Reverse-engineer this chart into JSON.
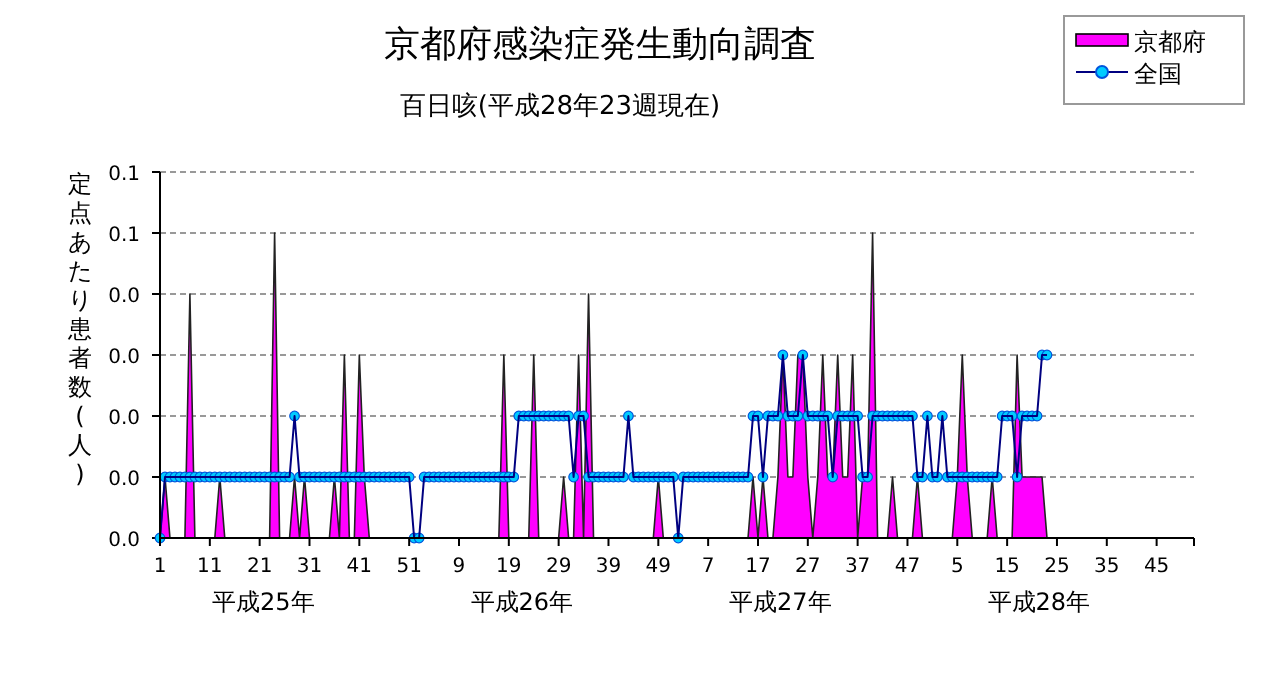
{
  "chart_data": {
    "type": "area",
    "title": "京都府感染症発生動向調査",
    "subtitle": "百日咳(平成28年23週現在)",
    "ylabel": "定点あたり患者数(人)",
    "categories": [
      "1",
      null,
      null,
      null,
      null,
      null,
      null,
      null,
      null,
      null,
      "11",
      null,
      null,
      null,
      null,
      null,
      null,
      null,
      null,
      null,
      "21",
      null,
      null,
      null,
      null,
      null,
      null,
      null,
      null,
      null,
      "31",
      null,
      null,
      null,
      null,
      null,
      null,
      null,
      null,
      null,
      "41",
      null,
      null,
      null,
      null,
      null,
      null,
      null,
      null,
      null,
      "51",
      null,
      null,
      null,
      null,
      null,
      null,
      null,
      null,
      null,
      "9",
      null,
      null,
      null,
      null,
      null,
      null,
      null,
      null,
      null,
      "19",
      null,
      null,
      null,
      null,
      null,
      null,
      null,
      null,
      null,
      "29",
      null,
      null,
      null,
      null,
      null,
      null,
      null,
      null,
      null,
      "39",
      null,
      null,
      null,
      null,
      null,
      null,
      null,
      null,
      null,
      "49",
      null,
      null,
      null,
      null,
      null,
      null,
      null,
      null,
      null,
      "7",
      null,
      null,
      null,
      null,
      null,
      null,
      null,
      null,
      null,
      "17",
      null,
      null,
      null,
      null,
      null,
      null,
      null,
      null,
      null,
      "27",
      null,
      null,
      null,
      null,
      null,
      null,
      null,
      null,
      null,
      "37",
      null,
      null,
      null,
      null,
      null,
      null,
      null,
      null,
      null,
      "47",
      null,
      null,
      null,
      null,
      null,
      null,
      null,
      null,
      null,
      "5",
      null,
      null,
      null,
      null,
      null,
      null,
      null,
      null,
      null,
      "15",
      null,
      null,
      null,
      null,
      null,
      null,
      null,
      null,
      null,
      "25",
      null,
      null,
      null,
      null,
      null,
      null,
      null,
      null,
      null,
      "35",
      null,
      null,
      null,
      null,
      null,
      null,
      null,
      null,
      null,
      "45",
      null,
      null,
      null,
      null,
      null,
      null,
      null
    ],
    "series": [
      {
        "name": "京都府",
        "color": "#ff00ff",
        "values": [
          0,
          0.01,
          0,
          0,
          0,
          0,
          0.04,
          0,
          0,
          0,
          0,
          0,
          0.01,
          0,
          0,
          0,
          0,
          0,
          0,
          0,
          0,
          0,
          0,
          0.05,
          0,
          0,
          0,
          0.01,
          0,
          0.01,
          0,
          0,
          0,
          0,
          0,
          0.01,
          0,
          0.03,
          0,
          0,
          0.03,
          0.01,
          0,
          0,
          0,
          0,
          0,
          0,
          0,
          0,
          0,
          0,
          0,
          0,
          0,
          0,
          0,
          0,
          0,
          0,
          0,
          0,
          0,
          0,
          0,
          0,
          0,
          0,
          0,
          0.03,
          0,
          0,
          0,
          0,
          0,
          0.03,
          0,
          0,
          0,
          0,
          0,
          0.01,
          0,
          0,
          0.03,
          0,
          0.04,
          0,
          0,
          0,
          0,
          0,
          0,
          0,
          0,
          0,
          0,
          0,
          0,
          0,
          0.01,
          0,
          0,
          0,
          0,
          0,
          0,
          0,
          0,
          0,
          0,
          0,
          0,
          0,
          0,
          0,
          0,
          0,
          0,
          0.01,
          0,
          0.01,
          0,
          0,
          0.01,
          0.03,
          0.01,
          0.01,
          0.03,
          0.03,
          0.01,
          0,
          0.01,
          0.03,
          0.01,
          0.01,
          0.03,
          0.01,
          0.01,
          0.03,
          0,
          0.01,
          0.01,
          0.05,
          0,
          0,
          0,
          0.01,
          0,
          0,
          0,
          0,
          0.01,
          0,
          0,
          0,
          0,
          0,
          0,
          0,
          0.01,
          0.03,
          0.01,
          0,
          0,
          0,
          0,
          0.01,
          0,
          0,
          0,
          0,
          0.03,
          0.01,
          0.01,
          0.01,
          0.01,
          0.01,
          0,
          null,
          null,
          null,
          null,
          null,
          null,
          null,
          null,
          null,
          null,
          null,
          null,
          null,
          null,
          null,
          null,
          null,
          null,
          null,
          null,
          null,
          null,
          null,
          null,
          null,
          null,
          null,
          null,
          null
        ]
      },
      {
        "name": "全国",
        "type": "line",
        "marker": "circle",
        "color": "#0055dd",
        "values": [
          0,
          0.01,
          0.01,
          0.01,
          0.01,
          0.01,
          0.01,
          0.01,
          0.01,
          0.01,
          0.01,
          0.01,
          0.01,
          0.01,
          0.01,
          0.01,
          0.01,
          0.01,
          0.01,
          0.01,
          0.01,
          0.01,
          0.01,
          0.01,
          0.01,
          0.01,
          0.01,
          0.02,
          0.01,
          0.01,
          0.01,
          0.01,
          0.01,
          0.01,
          0.01,
          0.01,
          0.01,
          0.01,
          0.01,
          0.01,
          0.01,
          0.01,
          0.01,
          0.01,
          0.01,
          0.01,
          0.01,
          0.01,
          0.01,
          0.01,
          0.01,
          0,
          0,
          0.01,
          0.01,
          0.01,
          0.01,
          0.01,
          0.01,
          0.01,
          0.01,
          0.01,
          0.01,
          0.01,
          0.01,
          0.01,
          0.01,
          0.01,
          0.01,
          0.01,
          0.01,
          0.01,
          0.02,
          0.02,
          0.02,
          0.02,
          0.02,
          0.02,
          0.02,
          0.02,
          0.02,
          0.02,
          0.02,
          0.01,
          0.02,
          0.02,
          0.01,
          0.01,
          0.01,
          0.01,
          0.01,
          0.01,
          0.01,
          0.01,
          0.02,
          0.01,
          0.01,
          0.01,
          0.01,
          0.01,
          0.01,
          0.01,
          0.01,
          0.01,
          0,
          0.01,
          0.01,
          0.01,
          0.01,
          0.01,
          0.01,
          0.01,
          0.01,
          0.01,
          0.01,
          0.01,
          0.01,
          0.01,
          0.01,
          0.02,
          0.02,
          0.01,
          0.02,
          0.02,
          0.02,
          0.03,
          0.02,
          0.02,
          0.02,
          0.03,
          0.02,
          0.02,
          0.02,
          0.02,
          0.02,
          0.01,
          0.02,
          0.02,
          0.02,
          0.02,
          0.02,
          0.01,
          0.01,
          0.02,
          0.02,
          0.02,
          0.02,
          0.02,
          0.02,
          0.02,
          0.02,
          0.02,
          0.01,
          0.01,
          0.02,
          0.01,
          0.01,
          0.02,
          0.01,
          0.01,
          0.01,
          0.01,
          0.01,
          0.01,
          0.01,
          0.01,
          0.01,
          0.01,
          0.01,
          0.02,
          0.02,
          0.02,
          0.01,
          0.02,
          0.02,
          0.02,
          0.02,
          0.03,
          0.03,
          null,
          null,
          null,
          null,
          null,
          null,
          null,
          null,
          null,
          null,
          null,
          null,
          null,
          null,
          null,
          null,
          null,
          null,
          null,
          null,
          null,
          null,
          null,
          null,
          null,
          null,
          null,
          null,
          null
        ]
      }
    ],
    "ylim": [
      0,
      0.06
    ],
    "yticks": [
      {
        "value": 0,
        "label": "0.0"
      },
      {
        "value": 0.01,
        "label": "0.0"
      },
      {
        "value": 0.02,
        "label": "0.0"
      },
      {
        "value": 0.03,
        "label": "0.0"
      },
      {
        "value": 0.04,
        "label": "0.0"
      },
      {
        "value": 0.05,
        "label": "0.1"
      },
      {
        "value": 0.06,
        "label": "0.1"
      }
    ],
    "grid": "y",
    "legend": "top right",
    "annotations": [
      "平成25年",
      "平成26年",
      "平成27年",
      "平成28年"
    ]
  }
}
